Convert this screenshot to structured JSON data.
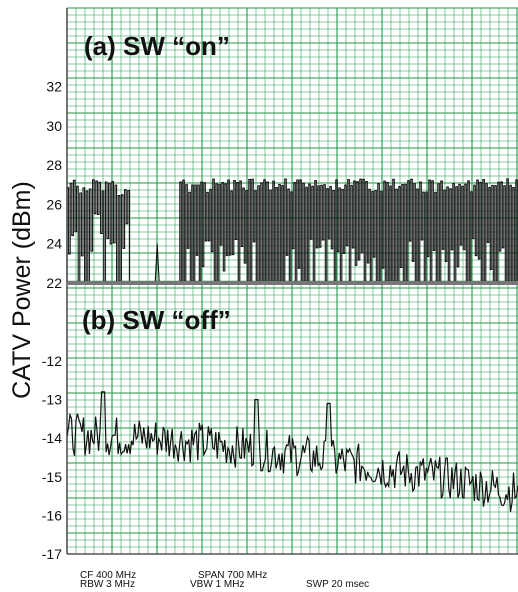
{
  "chart_data": [
    {
      "type": "line",
      "panel_label": "(a) SW “on”",
      "ylabel": "CATV Power (dBm)",
      "ylim": [
        22,
        36
      ],
      "yticks": [
        22,
        24,
        26,
        28,
        30,
        32
      ],
      "grid": true,
      "grid_color": "#1f9a4a",
      "trace_color": "#111111",
      "envelope": {
        "max": 27.3,
        "min": 22.0,
        "burst_1": [
          0.0,
          0.14
        ],
        "gap_spike": {
          "at": 0.2,
          "top": 24.0
        },
        "burst_2": [
          0.25,
          1.0
        ]
      }
    },
    {
      "type": "line",
      "panel_label": "(b) SW “off”",
      "ylim": [
        -17,
        -10
      ],
      "yticks": [
        -17,
        -16,
        -15,
        -14,
        -13,
        -12
      ],
      "grid": true,
      "grid_color": "#1f9a4a",
      "trace_color": "#111111",
      "trend": [
        {
          "x": 0.0,
          "y": -13.9
        },
        {
          "x": 0.2,
          "y": -14.0
        },
        {
          "x": 0.4,
          "y": -14.25
        },
        {
          "x": 0.6,
          "y": -14.6
        },
        {
          "x": 0.8,
          "y": -14.95
        },
        {
          "x": 1.0,
          "y": -15.4
        }
      ],
      "peaks": [
        {
          "x": 0.08,
          "y": -12.8
        },
        {
          "x": 0.42,
          "y": -13.0
        },
        {
          "x": 0.58,
          "y": -13.1
        }
      ],
      "noise_pp": 1.1
    }
  ],
  "footer": {
    "line1": [
      "CF 400 MHz",
      "SPAN 700 MHz"
    ],
    "line2": [
      "RBW 3 MHz",
      "VBW 1 MHz",
      "SWP 20 msec"
    ]
  }
}
